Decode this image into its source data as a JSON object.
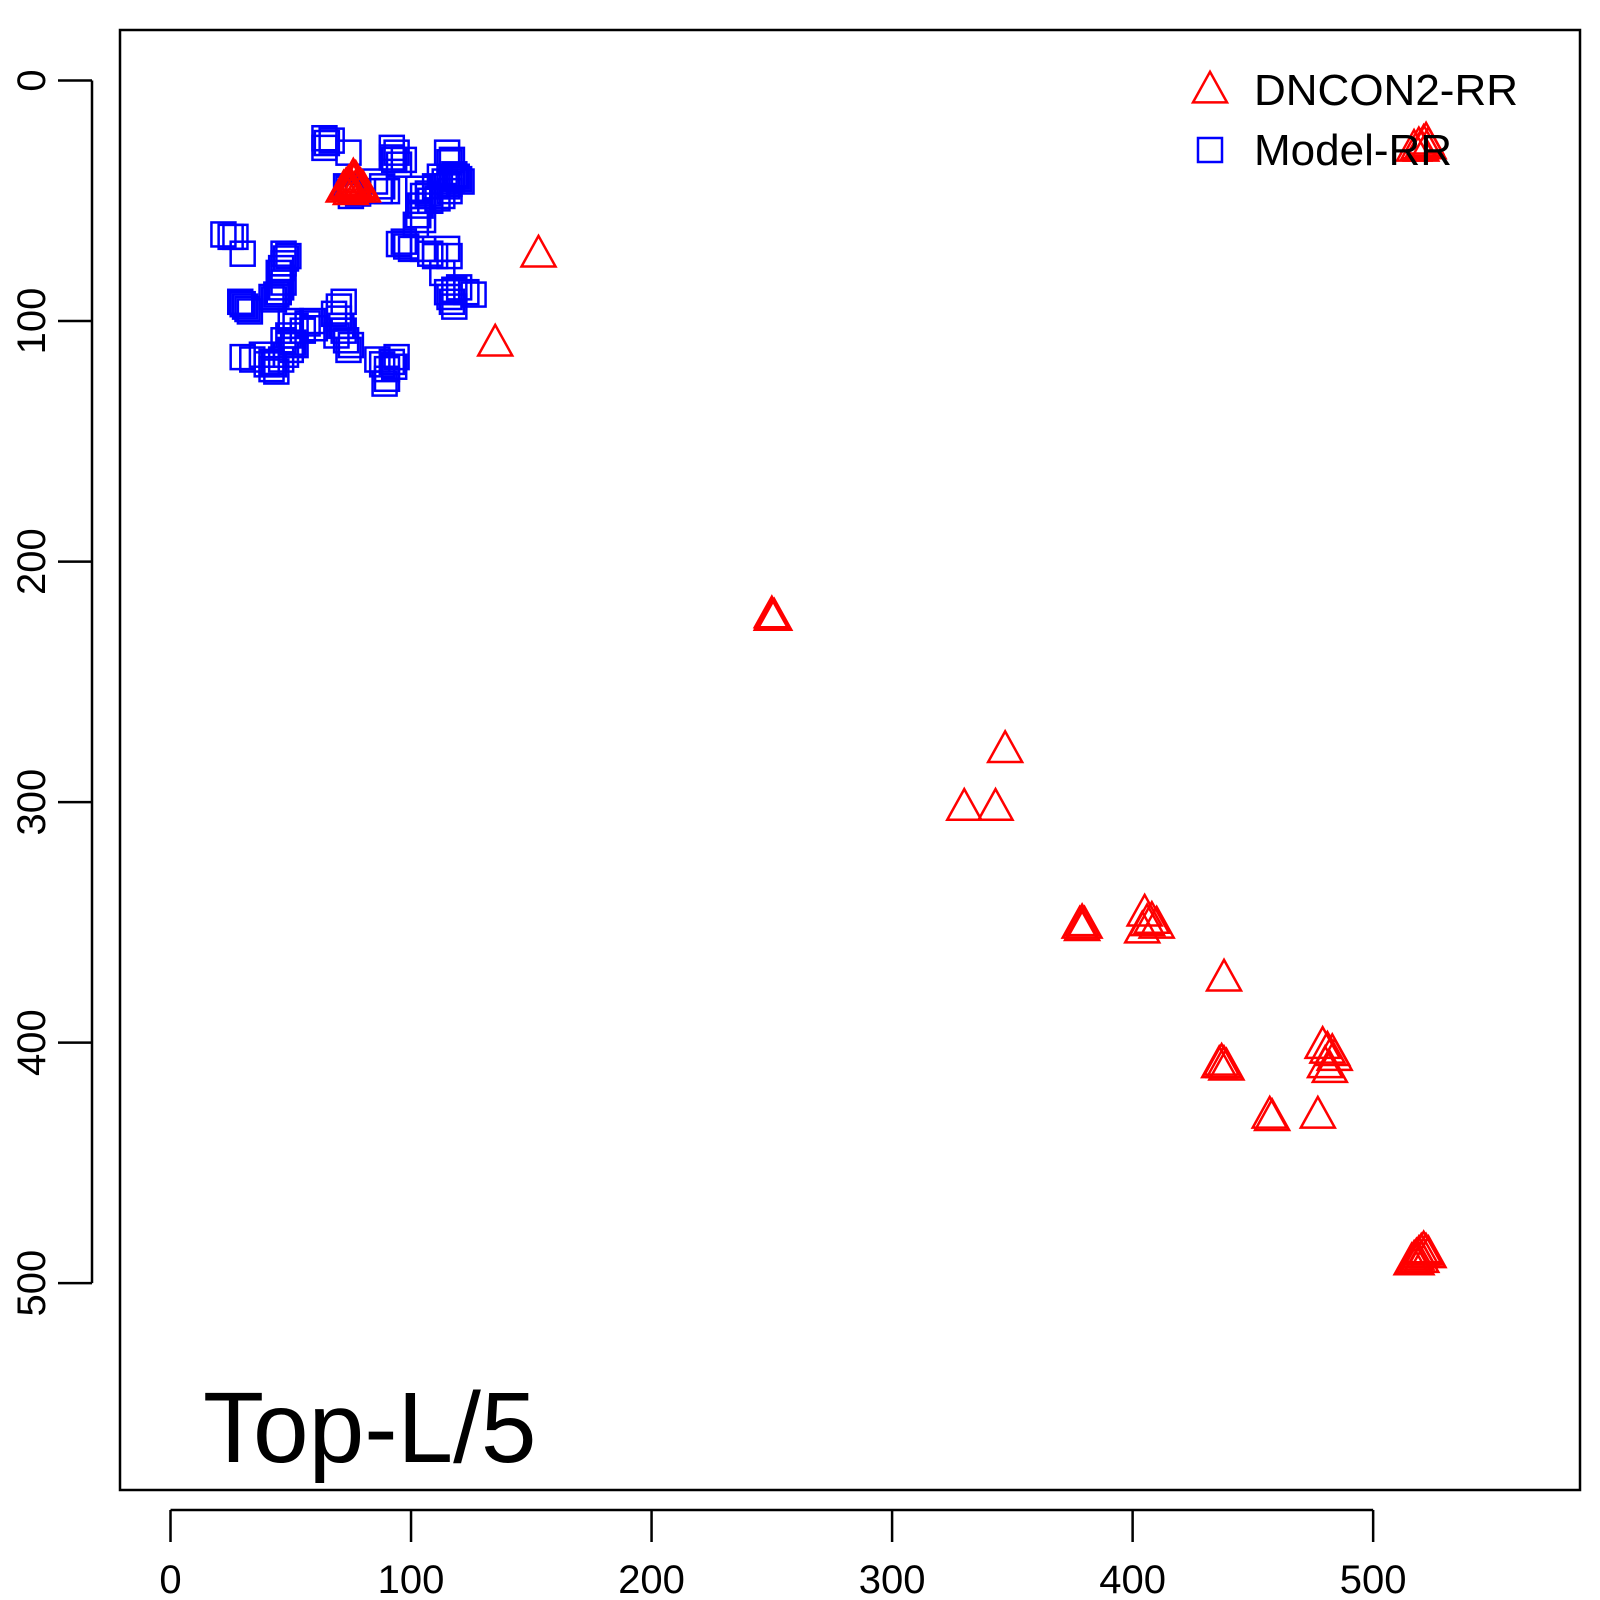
{
  "chart_data": {
    "type": "scatter",
    "panel_label": "Top-L/5",
    "xlim": [
      -21,
      586
    ],
    "ylim": [
      -21,
      586
    ],
    "y_axis_reversed": true,
    "x_ticks": [
      0,
      100,
      200,
      300,
      400,
      500
    ],
    "y_ticks": [
      0,
      100,
      200,
      300,
      400,
      500
    ],
    "grid": false,
    "legend_position": "top-right",
    "series": [
      {
        "name": "DNCON2-RR",
        "marker": "open-triangle",
        "color": "#ff0000",
        "points": [
          [
            72,
            46
          ],
          [
            73,
            45
          ],
          [
            74,
            44
          ],
          [
            75,
            45
          ],
          [
            76,
            43
          ],
          [
            77,
            42
          ],
          [
            78,
            44
          ],
          [
            79,
            45
          ],
          [
            75,
            47
          ],
          [
            77,
            46
          ],
          [
            80,
            46
          ],
          [
            76,
            41
          ],
          [
            153,
            73
          ],
          [
            135,
            110
          ],
          [
            250,
            224
          ],
          [
            251,
            224
          ],
          [
            250,
            223
          ],
          [
            347,
            279
          ],
          [
            330,
            303
          ],
          [
            343,
            303
          ],
          [
            378,
            352
          ],
          [
            379,
            351
          ],
          [
            380,
            352
          ],
          [
            379,
            353
          ],
          [
            405,
            347
          ],
          [
            406,
            351
          ],
          [
            404,
            354
          ],
          [
            408,
            350
          ],
          [
            410,
            352
          ],
          [
            438,
            374
          ],
          [
            436,
            410
          ],
          [
            437,
            409
          ],
          [
            438,
            410
          ],
          [
            439,
            411
          ],
          [
            479,
            402
          ],
          [
            481,
            404
          ],
          [
            483,
            405
          ],
          [
            484,
            407
          ],
          [
            482,
            412
          ],
          [
            480,
            410
          ],
          [
            457,
            431
          ],
          [
            458,
            432
          ],
          [
            477,
            431
          ],
          [
            517,
            29
          ],
          [
            519,
            28
          ],
          [
            521,
            27
          ],
          [
            522,
            26
          ],
          [
            523,
            28
          ],
          [
            520,
            29
          ],
          [
            516,
            492
          ],
          [
            517,
            491
          ],
          [
            518,
            490
          ],
          [
            519,
            489
          ],
          [
            520,
            488
          ],
          [
            521,
            487
          ],
          [
            522,
            488
          ],
          [
            523,
            489
          ],
          [
            518,
            492
          ],
          [
            520,
            491
          ]
        ]
      },
      {
        "name": "Model-RR",
        "marker": "open-square",
        "color": "#0000ff",
        "points": [
          [
            64,
            24
          ],
          [
            65,
            26
          ],
          [
            64,
            28
          ],
          [
            67,
            25
          ],
          [
            74,
            30
          ],
          [
            74,
            45
          ],
          [
            76,
            46
          ],
          [
            78,
            47
          ],
          [
            73,
            44
          ],
          [
            75,
            48
          ],
          [
            85,
            42
          ],
          [
            88,
            44
          ],
          [
            90,
            46
          ],
          [
            87,
            46
          ],
          [
            92,
            28
          ],
          [
            94,
            30
          ],
          [
            93,
            33
          ],
          [
            95,
            35
          ],
          [
            97,
            33
          ],
          [
            92,
            32
          ],
          [
            103,
            45
          ],
          [
            105,
            48
          ],
          [
            107,
            47
          ],
          [
            108,
            50
          ],
          [
            104,
            52
          ],
          [
            103,
            56
          ],
          [
            105,
            58
          ],
          [
            102,
            60
          ],
          [
            95,
            68
          ],
          [
            98,
            69
          ],
          [
            100,
            70
          ],
          [
            97,
            67
          ],
          [
            105,
            70
          ],
          [
            108,
            72
          ],
          [
            110,
            73
          ],
          [
            112,
            40
          ],
          [
            114,
            42
          ],
          [
            115,
            44
          ],
          [
            116,
            43
          ],
          [
            117,
            41
          ],
          [
            118,
            39
          ],
          [
            119,
            40
          ],
          [
            120,
            41
          ],
          [
            121,
            42
          ],
          [
            116,
            34
          ],
          [
            117,
            33
          ],
          [
            115,
            30
          ],
          [
            116,
            46
          ],
          [
            113,
            48
          ],
          [
            111,
            49
          ],
          [
            110,
            44
          ],
          [
            115,
            70
          ],
          [
            116,
            73
          ],
          [
            113,
            80
          ],
          [
            115,
            88
          ],
          [
            116,
            90
          ],
          [
            118,
            87
          ],
          [
            120,
            86
          ],
          [
            123,
            88
          ],
          [
            126,
            89
          ],
          [
            117,
            92
          ],
          [
            118,
            94
          ],
          [
            22,
            64
          ],
          [
            25,
            65
          ],
          [
            27,
            65
          ],
          [
            30,
            72
          ],
          [
            29,
            92
          ],
          [
            30,
            93
          ],
          [
            31,
            94
          ],
          [
            32,
            95
          ],
          [
            33,
            96
          ],
          [
            42,
            90
          ],
          [
            43,
            91
          ],
          [
            44,
            89
          ],
          [
            45,
            88
          ],
          [
            46,
            86
          ],
          [
            47,
            84
          ],
          [
            45,
            80
          ],
          [
            46,
            78
          ],
          [
            47,
            76
          ],
          [
            48,
            74
          ],
          [
            49,
            73
          ],
          [
            47,
            72
          ],
          [
            50,
            100
          ],
          [
            52,
            102
          ],
          [
            55,
            104
          ],
          [
            57,
            101
          ],
          [
            60,
            103
          ],
          [
            59,
            100
          ],
          [
            30,
            115
          ],
          [
            34,
            116
          ],
          [
            38,
            114
          ],
          [
            40,
            118
          ],
          [
            42,
            120
          ],
          [
            44,
            121
          ],
          [
            43,
            118
          ],
          [
            46,
            116
          ],
          [
            48,
            114
          ],
          [
            50,
            112
          ],
          [
            52,
            110
          ],
          [
            47,
            108
          ],
          [
            49,
            106
          ],
          [
            51,
            109
          ],
          [
            42,
            117
          ],
          [
            68,
            97
          ],
          [
            70,
            99
          ],
          [
            71,
            102
          ],
          [
            72,
            104
          ],
          [
            69,
            106
          ],
          [
            73,
            108
          ],
          [
            75,
            110
          ],
          [
            74,
            112
          ],
          [
            70,
            94
          ],
          [
            72,
            92
          ],
          [
            86,
            116
          ],
          [
            88,
            118
          ],
          [
            90,
            120
          ],
          [
            92,
            117
          ],
          [
            93,
            119
          ],
          [
            90,
            124
          ],
          [
            89,
            126
          ],
          [
            94,
            115
          ]
        ]
      }
    ]
  }
}
